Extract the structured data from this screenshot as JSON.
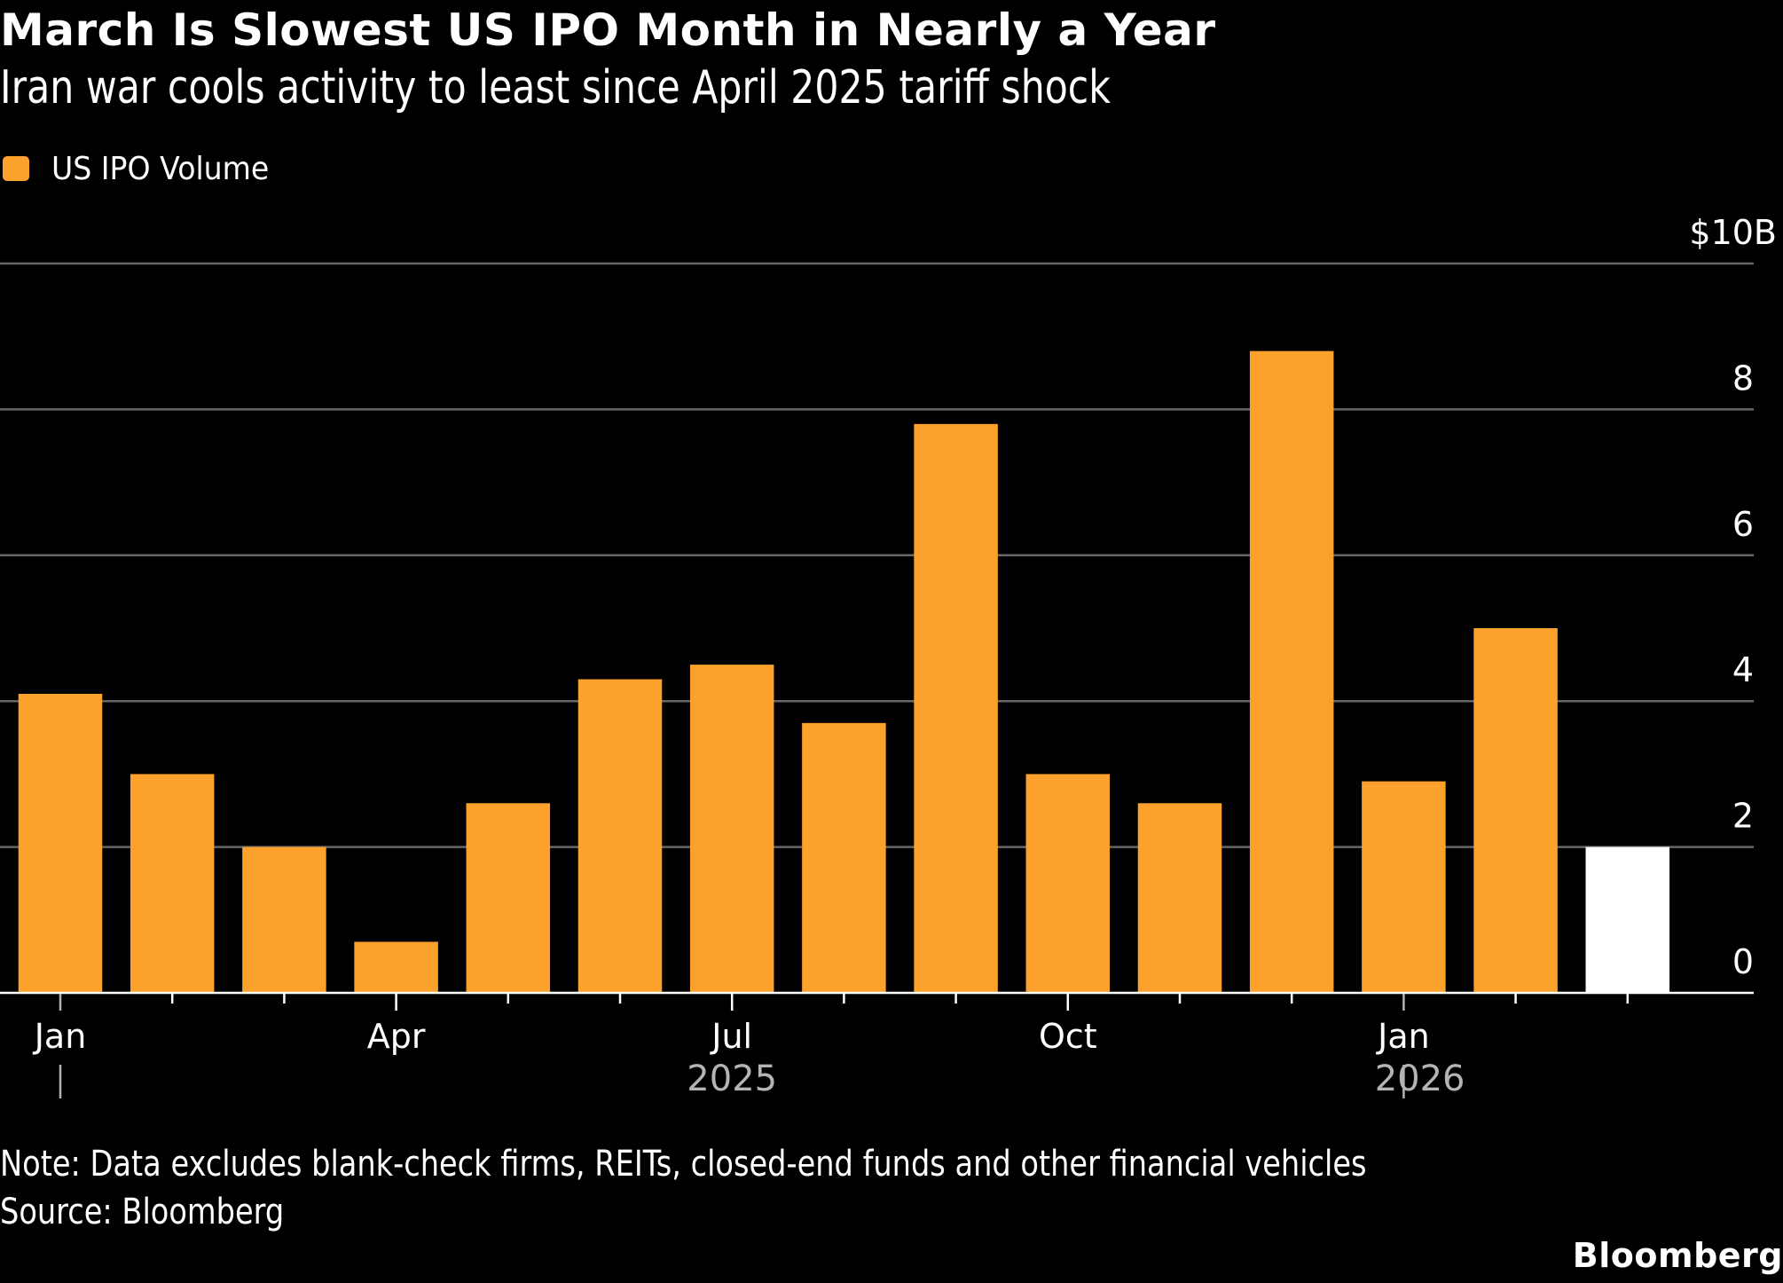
{
  "header": {
    "title": "March Is Slowest US IPO Month in Nearly a Year",
    "subtitle": "Iran war cools activity to least since April 2025 tariff shock"
  },
  "legend": {
    "items": [
      {
        "label": "US IPO Volume",
        "color": "#FBA12C"
      }
    ]
  },
  "footer": {
    "note": "Note: Data excludes blank-check firms, REITs, closed-end funds and other financial vehicles",
    "source": "Source: Bloomberg",
    "logo": "Bloomberg"
  },
  "colors": {
    "background": "#000000",
    "bar": "#FBA12C",
    "highlight_bar": "#FFFFFF",
    "gridline": "#666666",
    "axis": "#FFFFFF",
    "year_label": "#B4B4B4"
  },
  "chart_data": {
    "type": "bar",
    "title": "March Is Slowest US IPO Month in Nearly a Year",
    "subtitle": "Iran war cools activity to least since April 2025 tariff shock",
    "xlabel": "",
    "ylabel": "",
    "y_unit_label": "$10B",
    "ylim": [
      0,
      10
    ],
    "yticks": [
      0,
      2,
      4,
      6,
      8,
      10
    ],
    "ytick_labels": [
      "0",
      "2",
      "4",
      "6",
      "8",
      "$10B"
    ],
    "grid": true,
    "y_axis_side": "right",
    "legend_position": "top-left",
    "categories": [
      "Jan 2025",
      "Feb 2025",
      "Mar 2025",
      "Apr 2025",
      "May 2025",
      "Jun 2025",
      "Jul 2025",
      "Aug 2025",
      "Sep 2025",
      "Oct 2025",
      "Nov 2025",
      "Dec 2025",
      "Jan 2026",
      "Feb 2026",
      "Mar 2026"
    ],
    "xtick_labels": [
      {
        "index": 0,
        "label": "Jan"
      },
      {
        "index": 3,
        "label": "Apr"
      },
      {
        "index": 6,
        "label": "Jul"
      },
      {
        "index": 9,
        "label": "Oct"
      },
      {
        "index": 12,
        "label": "Jan"
      }
    ],
    "year_labels": [
      {
        "label": "2025",
        "center_index": 6,
        "separator_index": 0
      },
      {
        "label": "2026",
        "center_index": 13,
        "separator_index": 12
      }
    ],
    "series": [
      {
        "name": "US IPO Volume",
        "unit": "$B",
        "values": [
          4.1,
          3.0,
          2.0,
          0.7,
          2.6,
          4.3,
          4.5,
          3.7,
          7.8,
          3.0,
          2.6,
          8.8,
          2.9,
          5.0,
          2.0
        ],
        "highlight_index": 14
      }
    ]
  }
}
